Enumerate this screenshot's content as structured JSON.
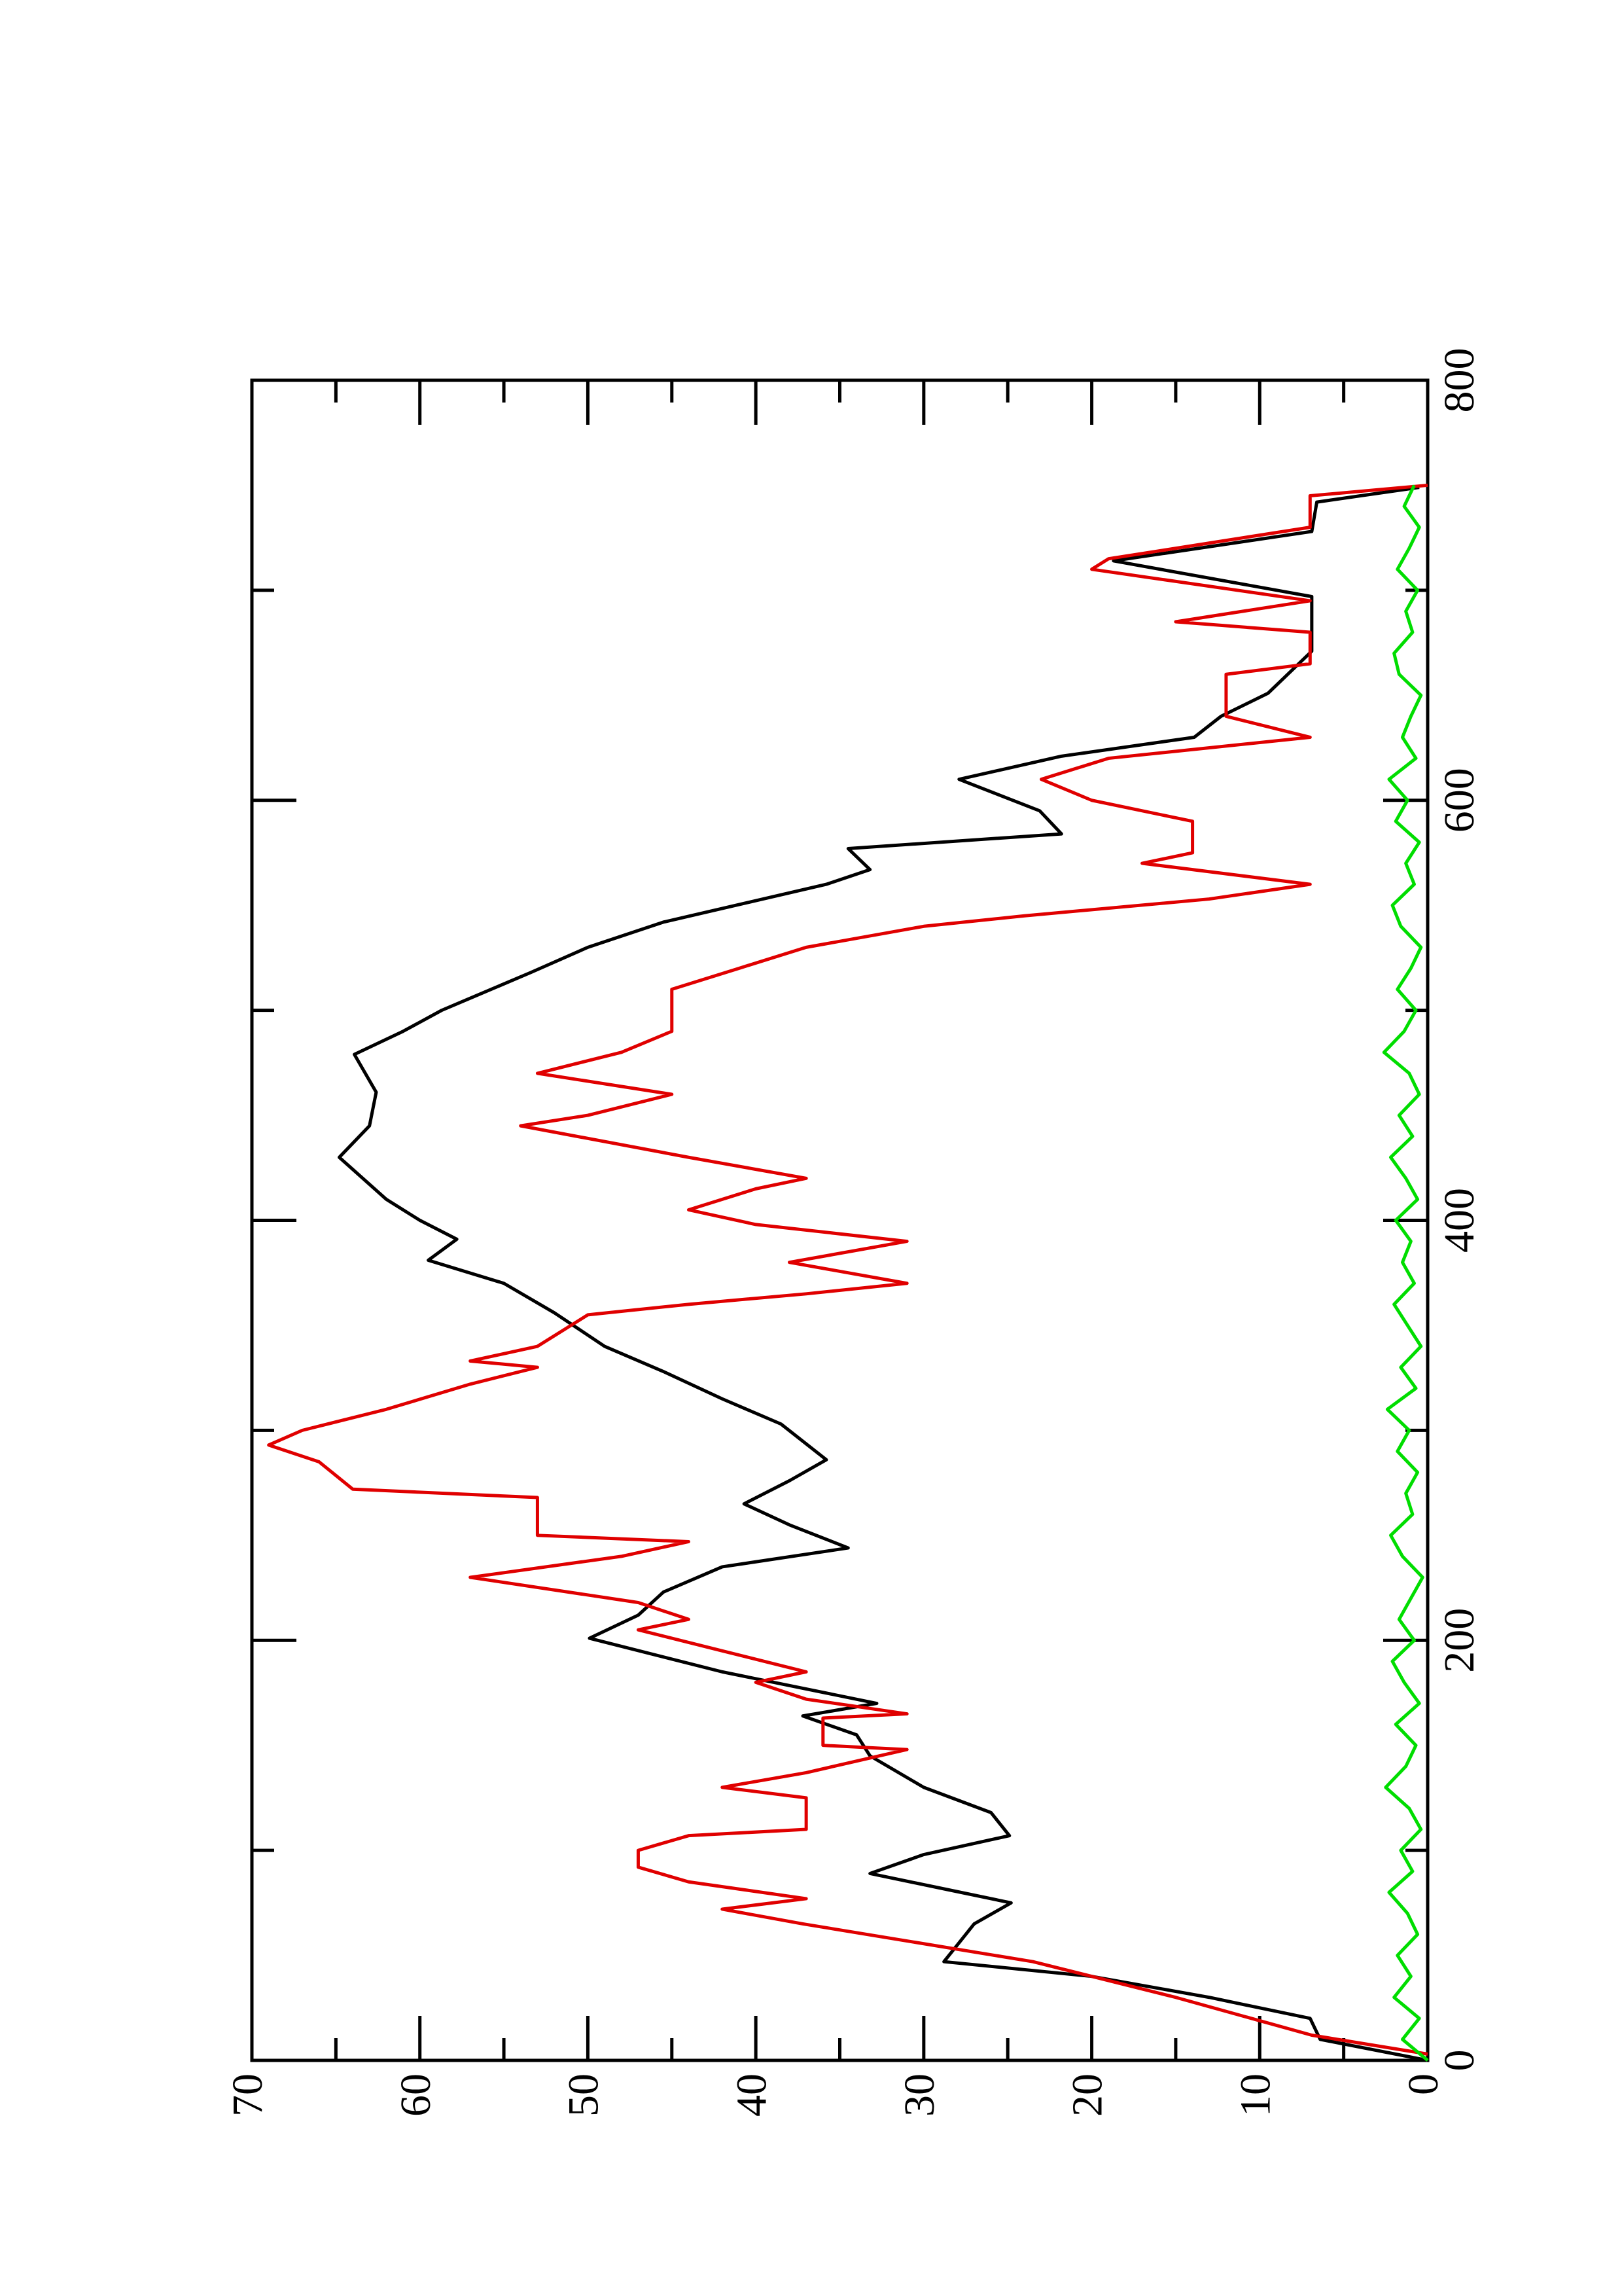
{
  "chart_data": {
    "type": "line",
    "xlim": [
      0,
      800
    ],
    "ylim": [
      0,
      70
    ],
    "xticks": [
      0,
      200,
      400,
      600,
      800
    ],
    "yticks": [
      0,
      10,
      20,
      30,
      40,
      50,
      60,
      70
    ],
    "xminorticks": [
      100,
      300,
      500,
      700
    ],
    "yminorticks": [
      5,
      15,
      25,
      35,
      45,
      55,
      65
    ],
    "series": [
      {
        "color": "#000000",
        "x": [
          0,
          10,
          20,
          30,
          40,
          47,
          55,
          65,
          75,
          82,
          89,
          98,
          107,
          118,
          130,
          145,
          155,
          164,
          170,
          185,
          201,
          212,
          223,
          235,
          244,
          255,
          265,
          276,
          286,
          303,
          315,
          328,
          340,
          356,
          370,
          381,
          391,
          400,
          410,
          430,
          445,
          461,
          479,
          490,
          500,
          518,
          530,
          542,
          560,
          567,
          577,
          584,
          595,
          610,
          621,
          630,
          640,
          651,
          671,
          697,
          714,
          728,
          742,
          749
        ],
        "values": [
          0,
          6.4,
          7,
          13,
          20,
          28.8,
          28,
          27,
          24.8,
          29,
          33.2,
          30,
          24.9,
          26,
          30,
          33.2,
          34,
          37.2,
          32.8,
          42,
          49.9,
          47,
          45.5,
          42,
          34.5,
          38,
          40.7,
          38,
          35.8,
          38.5,
          42,
          45.5,
          49,
          52,
          55,
          59.5,
          57.8,
          60,
          62,
          64.8,
          63,
          62.6,
          63.9,
          61,
          58.7,
          53.4,
          50,
          45.5,
          35.8,
          33.2,
          34.5,
          21.8,
          23.1,
          27.9,
          21.8,
          13.9,
          12.3,
          9.5,
          6.9,
          6.9,
          18.7,
          6.9,
          6.6,
          0.5
        ]
      },
      {
        "color": "#e00000",
        "x": [
          3,
          12,
          30,
          47,
          65,
          72,
          77,
          85,
          92,
          100,
          107,
          110,
          125,
          130,
          137,
          148,
          150,
          163,
          165,
          172,
          180,
          185,
          195,
          205,
          210,
          218,
          230,
          240,
          247,
          250,
          268,
          272,
          285,
          293,
          300,
          310,
          322,
          330,
          333,
          340,
          355,
          360,
          365,
          370,
          380,
          390,
          398,
          405,
          415,
          420,
          430,
          445,
          450,
          460,
          470,
          480,
          490,
          510,
          520,
          530,
          540,
          545,
          553,
          560,
          570,
          575,
          590,
          600,
          610,
          620,
          630,
          640,
          660,
          665,
          680,
          685,
          695,
          710,
          715,
          730,
          745,
          750
        ],
        "values": [
          0,
          6.9,
          15,
          23.5,
          37.2,
          42,
          37,
          44,
          47,
          47,
          44,
          37,
          37,
          42,
          37,
          31,
          36,
          36,
          31,
          37,
          40,
          37,
          42,
          47,
          44,
          47,
          57,
          48,
          44,
          53,
          53,
          64,
          66,
          69,
          67,
          62,
          57,
          53,
          57,
          53,
          50,
          44,
          37,
          31,
          38,
          31,
          40,
          44,
          40,
          37,
          44,
          54,
          50,
          45,
          53,
          48,
          45,
          45,
          41,
          37,
          30,
          24,
          13,
          7,
          17,
          14,
          14,
          20,
          23,
          19,
          7,
          12,
          12,
          7,
          7,
          15,
          7,
          20,
          19,
          7,
          7,
          0
        ]
      },
      {
        "color": "#00dd00",
        "x": [
          0,
          10,
          20,
          30,
          40,
          50,
          60,
          70,
          80,
          90,
          100,
          110,
          120,
          130,
          140,
          150,
          160,
          170,
          180,
          190,
          200,
          210,
          220,
          230,
          240,
          250,
          260,
          270,
          280,
          290,
          300,
          310,
          320,
          330,
          340,
          350,
          360,
          370,
          380,
          390,
          400,
          410,
          420,
          430,
          440,
          450,
          460,
          470,
          480,
          490,
          500,
          510,
          520,
          530,
          540,
          550,
          560,
          570,
          580,
          590,
          600,
          610,
          620,
          630,
          640,
          650,
          660,
          670,
          680,
          690,
          700,
          710,
          720,
          730,
          740,
          750
        ],
        "values": [
          0,
          1.5,
          0.5,
          2,
          1,
          1.8,
          0.6,
          1.2,
          2.3,
          0.9,
          1.6,
          0.4,
          1.1,
          2.5,
          1.3,
          0.7,
          1.9,
          0.5,
          1.4,
          2.1,
          0.8,
          1.7,
          1,
          0.3,
          1.5,
          2.2,
          0.9,
          1.3,
          0.6,
          1.8,
          1.1,
          2.4,
          0.7,
          1.6,
          0.4,
          1.2,
          2,
          0.8,
          1.5,
          1,
          1.9,
          0.6,
          1.3,
          2.2,
          0.9,
          1.7,
          0.5,
          1.1,
          2.6,
          1.4,
          0.7,
          1.8,
          1,
          0.4,
          1.6,
          2.1,
          0.8,
          1.3,
          0.5,
          1.9,
          1.2,
          2.3,
          0.7,
          1.5,
          1,
          0.4,
          1.7,
          2,
          0.9,
          1.3,
          0.6,
          1.8,
          1.1,
          0.5,
          1.4,
          0.8
        ]
      }
    ]
  }
}
